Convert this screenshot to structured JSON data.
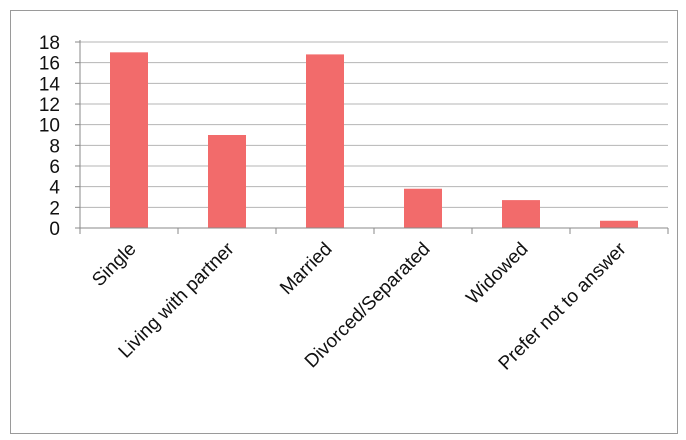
{
  "chart_data": {
    "type": "bar",
    "categories": [
      "Single",
      "Living with partner",
      "Married",
      "Divorced/Separated",
      "Widowed",
      "Prefer not to answer"
    ],
    "values": [
      17,
      9,
      16.8,
      3.8,
      2.7,
      0.7
    ],
    "ylim": [
      0,
      18
    ],
    "yticks": [
      0,
      2,
      4,
      6,
      8,
      10,
      12,
      14,
      16,
      18
    ],
    "grid": true,
    "legend": "none",
    "bar_color": "#f26b6b",
    "grid_color": "#b5b5b5"
  }
}
